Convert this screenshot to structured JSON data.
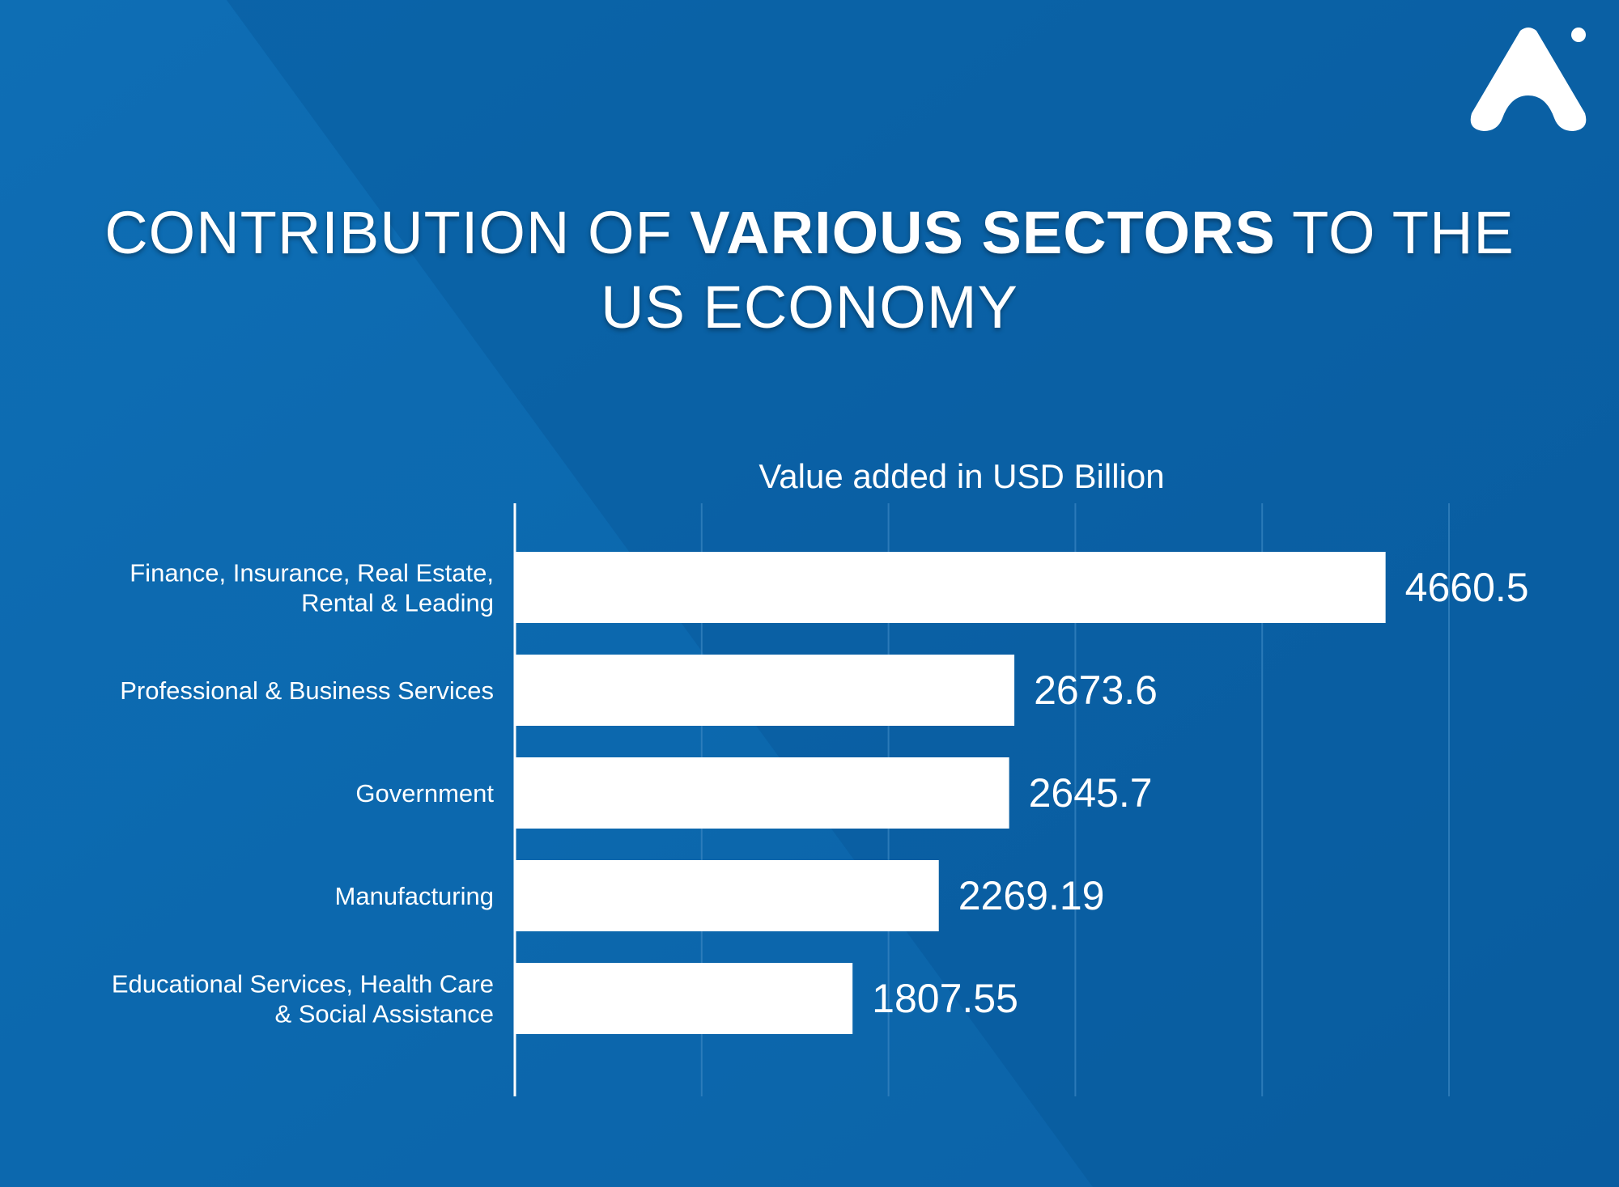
{
  "title": {
    "part1": "CONTRIBUTION OF ",
    "bold": "VARIOUS SECTORS",
    "part2": " TO THE",
    "line2": "US ECONOMY"
  },
  "logo": {
    "icon": "brand-logo-icon"
  },
  "colors": {
    "background": "#0b66ad",
    "background_dark": "#0a5a9e",
    "bar": "#ffffff",
    "text": "#ffffff",
    "gridline": "#3a86c2"
  },
  "chart_data": {
    "type": "bar",
    "orientation": "horizontal",
    "xlabel": "Value added in USD Billion",
    "ylabel": "",
    "categories": [
      [
        "Finance, Insurance, Real Estate,",
        "Rental & Leading"
      ],
      [
        "Professional & Business Services"
      ],
      [
        "Government"
      ],
      [
        "Manufacturing"
      ],
      [
        "Educational Services, Health Care",
        "& Social Assistance"
      ]
    ],
    "values": [
      4660.5,
      2673.6,
      2645.7,
      2269.19,
      1807.55
    ],
    "value_labels": [
      "4660.5",
      "2673.6",
      "2645.7",
      "2269.19",
      "1807.55"
    ],
    "xlim": [
      0,
      5000
    ],
    "grid": true
  }
}
